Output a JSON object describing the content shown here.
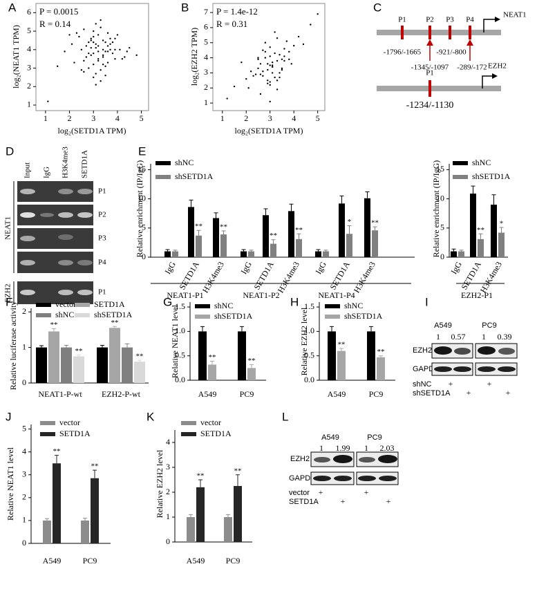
{
  "panel_labels": [
    "A",
    "B",
    "C",
    "D",
    "E",
    "F",
    "G",
    "H",
    "I",
    "J",
    "K",
    "L"
  ],
  "chart_data": [
    {
      "type": "scatter",
      "x_label": "log₂(SETD1A TPM)",
      "y_label": "log₂(NEAT1 TPM)",
      "annotations": [
        "P = 0.0015",
        "R = 0.14"
      ],
      "color": "#000000",
      "xlim": [
        0.6,
        5.3
      ],
      "ylim": [
        0.7,
        6.5
      ],
      "xticks": [
        1,
        2,
        3,
        4,
        5
      ],
      "yticks": [
        1,
        2,
        3,
        4,
        5,
        6
      ],
      "x": [
        3.1,
        3.4,
        2.8,
        3.6,
        3.0,
        2.5,
        3.9,
        3.3,
        2.9,
        3.7,
        3.2,
        2.6,
        4.1,
        3.5,
        2.7,
        3.0,
        3.8,
        3.4,
        2.2,
        3.1,
        3.6,
        2.9,
        4.3,
        3.2,
        2.4,
        3.5,
        3.0,
        3.9,
        2.8,
        3.3,
        1.8,
        3.7,
        3.1,
        2.6,
        4.0,
        3.4,
        2.9,
        3.2,
        3.6,
        2.3,
        3.0,
        4.5,
        3.3,
        2.7,
        3.8,
        3.1,
        1.5,
        3.5,
        2.9,
        3.4,
        4.2,
        3.0,
        2.5,
        3.6,
        3.2,
        1.1,
        3.9,
        2.8,
        3.3,
        4.8,
        3.1,
        2.1,
        3.7,
        3.4,
        2.6,
        3.0,
        4.4,
        3.5,
        2.0,
        3.2
      ],
      "y": [
        4.1,
        3.6,
        4.4,
        3.9,
        3.2,
        4.0,
        4.6,
        2.9,
        3.7,
        4.3,
        4.8,
        3.4,
        4.0,
        3.1,
        4.2,
        5.0,
        3.8,
        4.5,
        3.3,
        2.7,
        4.9,
        4.1,
        3.6,
        3.9,
        4.7,
        4.4,
        2.5,
        3.5,
        3.0,
        5.2,
        3.9,
        4.0,
        4.3,
        2.8,
        4.8,
        3.7,
        4.6,
        3.4,
        4.2,
        4.9,
        3.8,
        4.1,
        2.3,
        3.6,
        4.4,
        5.4,
        3.1,
        3.9,
        4.5,
        4.0,
        3.5,
        4.7,
        2.9,
        3.3,
        4.2,
        1.2,
        4.0,
        3.8,
        5.6,
        3.7,
        2.1,
        4.3,
        4.6,
        3.2,
        5.1,
        4.4,
        3.9,
        2.6,
        4.8,
        3.5
      ]
    },
    {
      "type": "scatter",
      "x_label": "log₂(SETD1A TPM)",
      "y_label": "log₂(EZH2 TPM)",
      "annotations": [
        "P = 1.4e-12",
        "R = 0.31"
      ],
      "color": "#000000",
      "xlim": [
        0.6,
        5.3
      ],
      "ylim": [
        0.5,
        7.6
      ],
      "xticks": [
        1,
        2,
        3,
        4,
        5
      ],
      "yticks": [
        1,
        2,
        3,
        4,
        5,
        6,
        7
      ],
      "x": [
        3.0,
        2.7,
        3.4,
        3.1,
        2.5,
        3.6,
        2.9,
        3.3,
        2.2,
        3.8,
        3.0,
        2.6,
        3.5,
        3.2,
        2.8,
        4.0,
        3.1,
        2.4,
        3.7,
        2.9,
        3.3,
        2.0,
        3.6,
        3.1,
        2.7,
        4.2,
        3.0,
        2.5,
        3.4,
        2.8,
        1.5,
        3.9,
        3.2,
        2.6,
        3.5,
        3.0,
        2.3,
        4.4,
        3.1,
        2.9,
        1.2,
        3.6,
        3.3,
        2.7,
        3.0,
        4.7,
        2.5,
        3.4,
        3.1,
        2.8,
        3.8,
        2.1,
        3.2,
        2.9,
        5.0,
        3.5,
        2.6,
        3.0,
        1.8,
        3.3
      ],
      "y": [
        3.5,
        2.8,
        4.2,
        3.0,
        3.3,
        4.6,
        2.5,
        3.8,
        3.1,
        4.4,
        2.2,
        3.6,
        3.9,
        2.7,
        4.0,
        4.8,
        3.4,
        2.9,
        5.1,
        3.2,
        1.9,
        2.6,
        4.1,
        3.7,
        4.5,
        5.4,
        2.4,
        3.9,
        3.0,
        5.0,
        2.1,
        3.6,
        4.3,
        1.6,
        3.2,
        4.7,
        2.8,
        4.9,
        3.5,
        2.3,
        1.3,
        3.8,
        5.3,
        3.1,
        1.1,
        6.2,
        4.0,
        2.7,
        3.4,
        4.4,
        3.9,
        2.0,
        5.7,
        3.6,
        6.9,
        3.3,
        2.9,
        4.1,
        3.7,
        2.5
      ]
    },
    {
      "type": "bar",
      "y_label": "Relative enrichment (IP/IgG)",
      "ylim": [
        0,
        16
      ],
      "yticks": [
        0,
        5,
        10,
        15
      ],
      "categories": [
        "IgG",
        "SETD1A",
        "H3K4me3",
        "IgG",
        "SETD1A",
        "H3K4me3",
        "IgG",
        "SETD1A",
        "H3K4me3"
      ],
      "group_labels": [
        "NEAT1-P1",
        "NEAT1-P2",
        "NEAT1-P4"
      ],
      "series": [
        {
          "name": "shNC",
          "color": "#000000",
          "values": [
            1,
            8.6,
            6.7,
            1,
            7.2,
            7.9,
            1,
            9.2,
            10.1
          ],
          "errors": [
            0.3,
            1.2,
            0.9,
            0.3,
            1.1,
            1.2,
            0.3,
            1.3,
            1.1
          ]
        },
        {
          "name": "shSETD1A",
          "color": "#808080",
          "values": [
            1,
            3.7,
            3.9,
            1,
            2.3,
            3.1,
            1,
            4,
            4.6
          ],
          "errors": [
            0.2,
            0.9,
            0.6,
            0.2,
            0.7,
            0.9,
            0.2,
            1.4,
            0.6
          ],
          "annotations": [
            null,
            "**",
            "**",
            null,
            "**",
            "**",
            null,
            "*",
            "**"
          ]
        }
      ]
    },
    {
      "type": "bar",
      "y_label": "Relative enrichment (IP/IgG)",
      "ylim": [
        0,
        16
      ],
      "yticks": [
        0,
        5,
        10,
        15
      ],
      "categories": [
        "IgG",
        "SETD1A",
        "H3K4me3"
      ],
      "group_labels": [
        "EZH2-P1"
      ],
      "series": [
        {
          "name": "shNC",
          "color": "#000000",
          "values": [
            1,
            10.9,
            9
          ],
          "errors": [
            0.4,
            1.3,
            1.7
          ]
        },
        {
          "name": "shSETD1A",
          "color": "#808080",
          "values": [
            1,
            3.1,
            4.2
          ],
          "errors": [
            0.2,
            0.9,
            0.9
          ],
          "annotations": [
            null,
            "**",
            "*"
          ]
        }
      ]
    },
    {
      "type": "bar",
      "y_label": "Relative luciferase activity",
      "ylim": [
        0,
        2.1
      ],
      "yticks": [
        0,
        1,
        2
      ],
      "categories": [
        "NEAT1-P-wt",
        "EZH2-P-wt"
      ],
      "series": [
        {
          "name": "vector",
          "color": "#000000",
          "values": [
            1,
            1
          ],
          "errors": [
            0.05,
            0.06
          ]
        },
        {
          "name": "SETD1A",
          "color": "#a6a6a6",
          "values": [
            1.45,
            1.55
          ],
          "errors": [
            0.08,
            0.04
          ],
          "annotations": [
            "**",
            "**"
          ]
        },
        {
          "name": "shNC",
          "color": "#7f7f7f",
          "values": [
            1,
            1
          ],
          "errors": [
            0.06,
            0.1
          ]
        },
        {
          "name": "shSETD1A",
          "color": "#d9d9d9",
          "values": [
            0.75,
            0.6
          ],
          "errors": [
            0.04,
            0.04
          ],
          "annotations": [
            "**",
            "**"
          ]
        }
      ]
    },
    {
      "type": "bar",
      "y_label": "Relative NEAT1 level",
      "ylim": [
        0,
        1.6
      ],
      "yticks": [
        {
          "value": 0,
          "label": "0.0"
        },
        {
          "value": 0.5,
          "label": "0.5"
        },
        {
          "value": 1,
          "label": "1.0"
        },
        {
          "value": 1.5,
          "label": "1.5"
        }
      ],
      "categories": [
        "A549",
        "PC9"
      ],
      "series": [
        {
          "name": "shNC",
          "color": "#000000",
          "values": [
            1,
            1
          ],
          "errors": [
            0.1,
            0.1
          ]
        },
        {
          "name": "shSETD1A",
          "color": "#a6a6a6",
          "values": [
            0.32,
            0.25
          ],
          "errors": [
            0.07,
            0.07
          ],
          "annotations": [
            "**",
            "**"
          ]
        }
      ]
    },
    {
      "type": "bar",
      "y_label": "Relative EZH2 level",
      "ylim": [
        0,
        1.6
      ],
      "yticks": [
        {
          "value": 0,
          "label": "0.0"
        },
        {
          "value": 0.5,
          "label": "0.5"
        },
        {
          "value": 1,
          "label": "1.0"
        },
        {
          "value": 1.5,
          "label": "1.5"
        }
      ],
      "categories": [
        "A549",
        "PC9"
      ],
      "series": [
        {
          "name": "shNC",
          "color": "#000000",
          "values": [
            1,
            1
          ],
          "errors": [
            0.1,
            0.1
          ]
        },
        {
          "name": "shSETD1A",
          "color": "#a6a6a6",
          "values": [
            0.6,
            0.47
          ],
          "errors": [
            0.05,
            0.03
          ],
          "annotations": [
            "**",
            "**"
          ]
        }
      ]
    },
    {
      "type": "bar",
      "y_label": "Relative NEAT1 level",
      "ylim": [
        0,
        5.2
      ],
      "yticks": [
        0,
        1,
        2,
        3,
        4,
        5
      ],
      "categories": [
        "A549",
        "PC9"
      ],
      "series": [
        {
          "name": "vector",
          "color": "#8c8c8c",
          "values": [
            1,
            1
          ],
          "errors": [
            0.08,
            0.1
          ]
        },
        {
          "name": "SETD1A",
          "color": "#262626",
          "values": [
            3.5,
            2.85
          ],
          "errors": [
            0.35,
            0.35
          ],
          "annotations": [
            "**",
            "**"
          ]
        }
      ]
    },
    {
      "type": "bar",
      "y_label": "Relative EZH2 level",
      "ylim": [
        0,
        4.5
      ],
      "yticks": [
        0,
        1,
        2,
        3,
        4
      ],
      "categories": [
        "A549",
        "PC9"
      ],
      "series": [
        {
          "name": "vector",
          "color": "#8c8c8c",
          "values": [
            1,
            1
          ],
          "errors": [
            0.1,
            0.1
          ]
        },
        {
          "name": "SETD1A",
          "color": "#262626",
          "values": [
            2.2,
            2.25
          ],
          "errors": [
            0.3,
            0.45
          ],
          "annotations": [
            "**",
            "**"
          ]
        }
      ]
    }
  ],
  "promoter_diagram": {
    "neat1": {
      "gene": "NEAT1",
      "sites": [
        "P1",
        "P2",
        "P3",
        "P4"
      ],
      "coordinates": [
        "-1796/-1665",
        "-1345/-1097",
        "-921/-800",
        "-289/-172"
      ]
    },
    "ezh2": {
      "gene": "EZH2",
      "sites": [
        "P1"
      ],
      "coordinates": [
        "-1234/-1130"
      ]
    }
  },
  "chip_gel": {
    "lanes": [
      "Input",
      "IgG",
      "H3K4me3",
      "SETD1A"
    ],
    "genes": [
      "NEAT1",
      "EZH2"
    ],
    "neat1_regions": [
      "P1",
      "P2",
      "P3",
      "P4"
    ],
    "ezh2_regions": [
      "P1"
    ]
  },
  "western_i": {
    "cell_lines": [
      "A549",
      "PC9"
    ],
    "ratios": [
      1,
      0.57,
      1,
      0.39
    ],
    "proteins": [
      "EZH2",
      "GAPDH"
    ],
    "rows": [
      {
        "name": "shNC",
        "marks": [
          "+",
          "+"
        ]
      },
      {
        "name": "shSETD1A",
        "marks": [
          "+",
          "+"
        ]
      }
    ]
  },
  "western_l": {
    "cell_lines": [
      "A549",
      "PC9"
    ],
    "ratios": [
      1,
      1.99,
      1,
      2.03
    ],
    "proteins": [
      "EZH2",
      "GAPDH"
    ],
    "rows": [
      {
        "name": "vector",
        "marks": [
          "+",
          "+"
        ]
      },
      {
        "name": "SETD1A",
        "marks": [
          "+",
          "+"
        ]
      }
    ]
  }
}
